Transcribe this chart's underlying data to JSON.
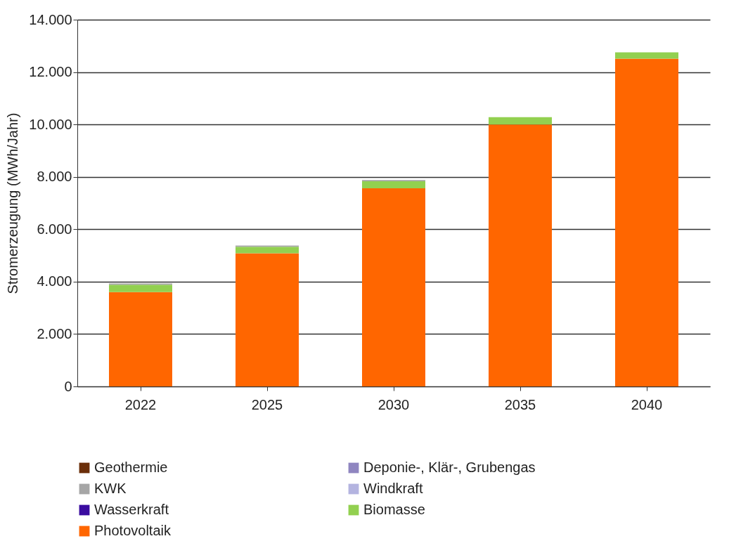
{
  "chart_data": {
    "type": "bar",
    "stacked": true,
    "ylabel": "Stromerzeugung (MWh/Jahr)",
    "categories": [
      "2022",
      "2025",
      "2030",
      "2035",
      "2040"
    ],
    "series": [
      {
        "name": "Photovoltaik",
        "color": "#ff6600",
        "values": [
          3600,
          5080,
          7560,
          10000,
          12510
        ]
      },
      {
        "name": "Biomasse",
        "color": "#92d050",
        "values": [
          280,
          250,
          270,
          280,
          240
        ]
      },
      {
        "name": "Wasserkraft",
        "color": "#3a0ca0",
        "values": [
          0,
          0,
          0,
          0,
          0
        ]
      },
      {
        "name": "Windkraft",
        "color": "#b4b4e0",
        "values": [
          0,
          0,
          0,
          0,
          0
        ]
      },
      {
        "name": "KWK",
        "color": "#a6a6a6",
        "values": [
          50,
          50,
          50,
          null,
          null
        ]
      },
      {
        "name": "Deponie-, Klär-, Grubengas",
        "color": "#8f86c0",
        "values": [
          0,
          0,
          0,
          0,
          0
        ]
      },
      {
        "name": "Geothermie",
        "color": "#6b2f0a",
        "values": [
          0,
          0,
          0,
          0,
          0
        ]
      }
    ],
    "ylim": [
      0,
      14000
    ],
    "yticks": [
      {
        "value": 0,
        "label": "0"
      },
      {
        "value": 2000,
        "label": "2.000"
      },
      {
        "value": 4000,
        "label": "4.000"
      },
      {
        "value": 6000,
        "label": "6.000"
      },
      {
        "value": 8000,
        "label": "8.000"
      },
      {
        "value": 10000,
        "label": "10.000"
      },
      {
        "value": 12000,
        "label": "12.000"
      },
      {
        "value": 14000,
        "label": "14.000"
      }
    ],
    "grid": "y",
    "legend": "bottom"
  }
}
